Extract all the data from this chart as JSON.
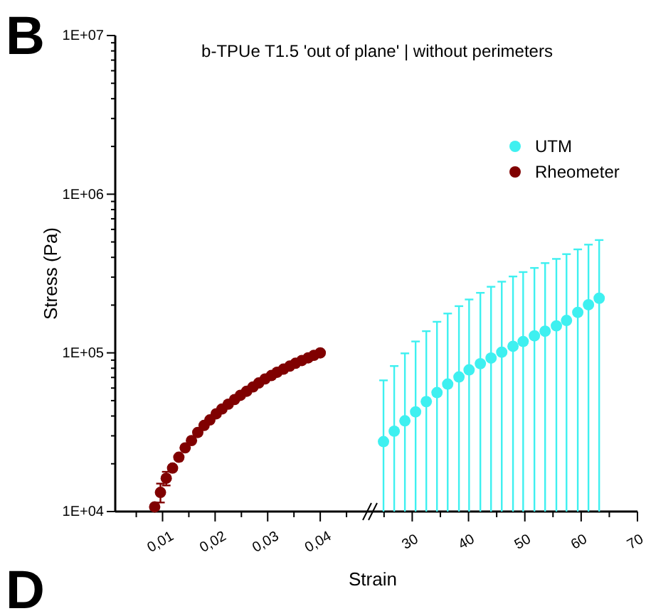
{
  "chart_data": [
    {
      "type": "scatter",
      "title": "b-TPUe T1.5 'out of plane' | without perimeters",
      "xlabel": "Strain",
      "ylabel": "Stress (Pa)",
      "log": "y",
      "legend": "top right",
      "marker": "circle",
      "annotations": [
        "B",
        "D"
      ],
      "xlim": [
        0.001,
        0.05
      ],
      "xticks": [
        {
          "value": 0.005,
          "label": null
        },
        {
          "value": 0.01,
          "label": "0,01"
        },
        {
          "value": 0.015,
          "label": null
        },
        {
          "value": 0.02,
          "label": "0,02"
        },
        {
          "value": 0.025,
          "label": null
        },
        {
          "value": 0.03,
          "label": "0,03"
        },
        {
          "value": 0.035,
          "label": null
        },
        {
          "value": 0.04,
          "label": "0,04"
        },
        {
          "value": 0.045,
          "label": null
        }
      ],
      "ylim": [
        10000,
        10000000
      ],
      "yticks": [
        {
          "value": 10000,
          "label": "1E+04"
        },
        {
          "value": 20000,
          "label": null
        },
        {
          "value": 30000,
          "label": null
        },
        {
          "value": 40000,
          "label": null
        },
        {
          "value": 50000,
          "label": null
        },
        {
          "value": 60000,
          "label": null
        },
        {
          "value": 70000,
          "label": null
        },
        {
          "value": 80000,
          "label": null
        },
        {
          "value": 90000,
          "label": null
        },
        {
          "value": 100000,
          "label": "1E+05"
        },
        {
          "value": 200000,
          "label": null
        },
        {
          "value": 300000,
          "label": null
        },
        {
          "value": 400000,
          "label": null
        },
        {
          "value": 500000,
          "label": null
        },
        {
          "value": 600000,
          "label": null
        },
        {
          "value": 700000,
          "label": null
        },
        {
          "value": 800000,
          "label": null
        },
        {
          "value": 900000,
          "label": null
        },
        {
          "value": 1000000,
          "label": "1E+06"
        },
        {
          "value": 2000000,
          "label": null
        },
        {
          "value": 3000000,
          "label": null
        },
        {
          "value": 4000000,
          "label": null
        },
        {
          "value": 5000000,
          "label": null
        },
        {
          "value": 6000000,
          "label": null
        },
        {
          "value": 7000000,
          "label": null
        },
        {
          "value": 8000000,
          "label": null
        },
        {
          "value": 9000000,
          "label": null
        },
        {
          "value": 10000000,
          "label": "1E+07"
        }
      ],
      "series": [
        {
          "name": "Rheometer",
          "color": "#800000",
          "x": [
            0.0085,
            0.0096,
            0.0107,
            0.0119,
            0.0131,
            0.0143,
            0.0155,
            0.0167,
            0.0179,
            0.019,
            0.0202,
            0.0213,
            0.0225,
            0.0237,
            0.0248,
            0.026,
            0.0272,
            0.0283,
            0.0295,
            0.0307,
            0.0318,
            0.033,
            0.0342,
            0.0353,
            0.0365,
            0.0377,
            0.0388,
            0.04
          ],
          "values": [
            10700,
            13200,
            16200,
            18800,
            22000,
            25200,
            28000,
            31500,
            34900,
            37800,
            41300,
            44300,
            47500,
            50800,
            54000,
            57300,
            61000,
            64600,
            68500,
            72000,
            75500,
            79000,
            82500,
            86000,
            89500,
            93000,
            96500,
            100000
          ],
          "errors": [
            null,
            1800,
            1600,
            null,
            null,
            null,
            null,
            null,
            null,
            null,
            null,
            null,
            null,
            null,
            null,
            null,
            null,
            null,
            null,
            null,
            null,
            null,
            null,
            null,
            null,
            null,
            null,
            null
          ]
        }
      ]
    },
    {
      "type": "scatter",
      "log": "y",
      "legend": "top right",
      "marker": "circle",
      "tick_labels": "x",
      "xlim": [
        23,
        70
      ],
      "xticks": [
        {
          "value": 25,
          "label": null
        },
        30,
        {
          "value": 35,
          "label": null
        },
        40,
        {
          "value": 45,
          "label": null
        },
        50,
        {
          "value": 55,
          "label": null
        },
        60,
        {
          "value": 65,
          "label": null
        },
        70
      ],
      "ylim": [
        10000,
        10000000
      ],
      "series": [
        {
          "name": "UTM",
          "color": "#3ef0f0",
          "x": [
            24.9,
            26.8,
            28.7,
            30.6,
            32.5,
            34.4,
            36.3,
            38.3,
            40.1,
            42.1,
            44,
            45.9,
            47.9,
            49.7,
            51.7,
            53.6,
            55.6,
            57.4,
            59.4,
            61.3,
            63.2
          ],
          "values": [
            27600,
            32100,
            37300,
            42500,
            49300,
            56200,
            63600,
            70500,
            78200,
            85500,
            92800,
            101000,
            110000,
            118000,
            128000,
            137000,
            148000,
            160000,
            180000,
            201000,
            221000
          ],
          "errors": [
            [
              10000,
              67100
            ],
            [
              10000,
              82600
            ],
            [
              10000,
              99300
            ],
            [
              10000,
              118000
            ],
            [
              10000,
              137000
            ],
            [
              10000,
              157000
            ],
            [
              10000,
              177000
            ],
            [
              10000,
              197000
            ],
            [
              10000,
              217000
            ],
            [
              10000,
              239000
            ],
            [
              10000,
              261000
            ],
            [
              10000,
              281000
            ],
            [
              10000,
              303000
            ],
            [
              10000,
              323000
            ],
            [
              10000,
              343000
            ],
            [
              10000,
              368000
            ],
            [
              10000,
              391000
            ],
            [
              10000,
              419000
            ],
            [
              10000,
              449000
            ],
            [
              10000,
              481000
            ],
            [
              10000,
              514000
            ]
          ]
        }
      ]
    }
  ]
}
